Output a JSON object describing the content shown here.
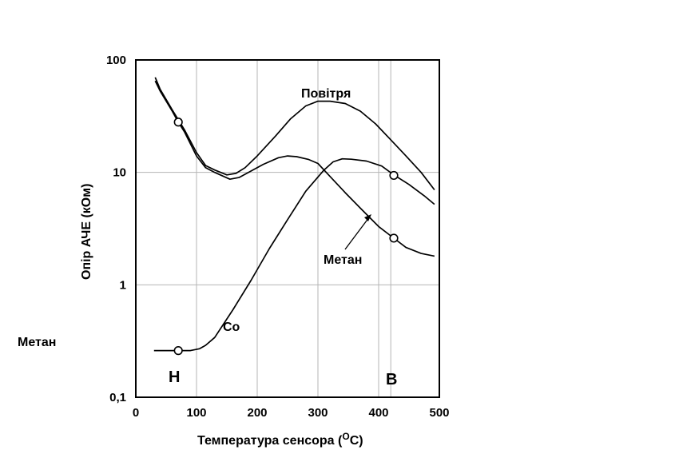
{
  "chart_data": {
    "type": "line",
    "title": "",
    "xlabel": "Температура  сенсора (",
    "xlabel_sup": "O",
    "xlabel_end": "C)",
    "ylabel": "Опір АЧЕ (кОм)",
    "xlim": [
      0,
      500
    ],
    "ylim": [
      0.1,
      100
    ],
    "yscale": "log",
    "grid": true,
    "x_ticks": [
      0,
      100,
      200,
      300,
      400,
      500
    ],
    "x_tick_labels": [
      "0",
      "100",
      "200",
      "300",
      "400",
      "500"
    ],
    "y_ticks": [
      0.1,
      1,
      10,
      100
    ],
    "y_tick_labels": [
      "0,1",
      "1",
      "10",
      "100"
    ],
    "vertical_grid": [
      100,
      200,
      300,
      400,
      420
    ],
    "series": [
      {
        "name": "Повітря",
        "label": "Повітря",
        "x": [
          32,
          40,
          60,
          80,
          100,
          115,
          130,
          150,
          165,
          180,
          200,
          230,
          255,
          280,
          300,
          320,
          345,
          370,
          395,
          420,
          445,
          470,
          492
        ],
        "y": [
          70,
          55,
          36,
          24,
          15,
          11.5,
          10.5,
          9.5,
          9.8,
          11,
          14,
          21,
          30,
          39,
          43,
          43,
          41,
          35,
          27,
          19.5,
          14,
          10,
          7
        ]
      },
      {
        "name": "Метан",
        "label": "Метан",
        "x": [
          32,
          40,
          60,
          70,
          80,
          100,
          115,
          130,
          155,
          170,
          190,
          210,
          235,
          250,
          265,
          285,
          300,
          320,
          345,
          370,
          400,
          425,
          445,
          470,
          492
        ],
        "y": [
          65,
          53,
          35,
          28,
          23,
          14,
          11,
          10,
          8.7,
          9,
          10.3,
          11.8,
          13.5,
          14,
          13.8,
          13,
          12,
          9.2,
          6.6,
          4.8,
          3.3,
          2.6,
          2.15,
          1.9,
          1.8
        ]
      },
      {
        "name": "Co",
        "label": "Co",
        "x": [
          30,
          50,
          70,
          90,
          105,
          115,
          130,
          160,
          190,
          220,
          250,
          280,
          310,
          325,
          340,
          355,
          380,
          405,
          425,
          450,
          475,
          492
        ],
        "y": [
          0.26,
          0.26,
          0.26,
          0.26,
          0.27,
          0.29,
          0.34,
          0.6,
          1.1,
          2.1,
          3.8,
          6.8,
          10.5,
          12.4,
          13.2,
          13.1,
          12.6,
          11.4,
          9.5,
          7.8,
          6.2,
          5.2
        ]
      }
    ],
    "markers": [
      {
        "series": "Повітря",
        "x": 70,
        "y": 28
      },
      {
        "series": "Co",
        "x": 70,
        "y": 0.26
      },
      {
        "series": "Co",
        "x": 425,
        "y": 9.4
      },
      {
        "series": "Метан",
        "x": 425,
        "y": 2.6
      }
    ],
    "point_labels": [
      {
        "text": "Н",
        "x": 70
      },
      {
        "text": "В",
        "x": 425
      }
    ],
    "annotations": [
      "Повітря",
      "Метан",
      "Co"
    ],
    "side_label": "Метан"
  },
  "colors": {
    "line": "#000000",
    "grid": "#b4b4b4",
    "frame": "#000000",
    "background": "#ffffff"
  }
}
